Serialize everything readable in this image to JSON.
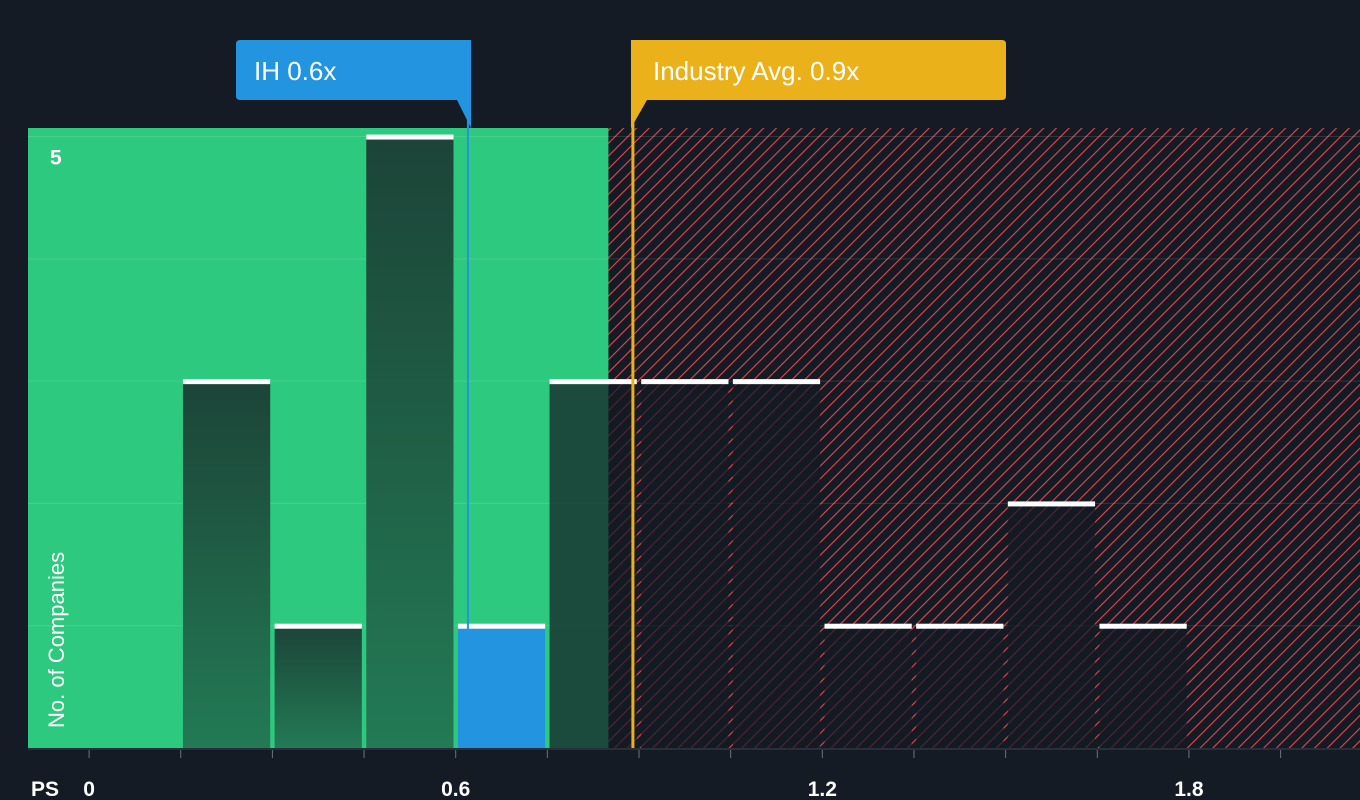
{
  "chart_data": {
    "type": "bar",
    "xlabel": "PS",
    "ylabel": "No. of Companies",
    "x_ticks": [
      0,
      0.6,
      1.2,
      1.8
    ],
    "x_tick_labels": [
      "0",
      "0.6",
      "1.2",
      "1.8"
    ],
    "y_tick_labels": [
      "5"
    ],
    "xlim": [
      -0.1,
      2.08
    ],
    "ylim": [
      0,
      5.07
    ],
    "bin_width": 0.15,
    "bins": [
      {
        "start": 0.15,
        "count": 3
      },
      {
        "start": 0.3,
        "count": 1
      },
      {
        "start": 0.45,
        "count": 5
      },
      {
        "start": 0.6,
        "count": 1,
        "highlight": true
      },
      {
        "start": 0.75,
        "count": 3
      },
      {
        "start": 0.9,
        "count": 3
      },
      {
        "start": 1.05,
        "count": 3
      },
      {
        "start": 1.2,
        "count": 1
      },
      {
        "start": 1.35,
        "count": 1
      },
      {
        "start": 1.5,
        "count": 2
      },
      {
        "start": 1.65,
        "count": 1
      }
    ],
    "good_value_max": 0.85,
    "company": {
      "label": "IH 0.6x",
      "value": 0.62
    },
    "industry_avg": {
      "label": "Industry Avg. 0.9x",
      "value": 0.89
    },
    "colors": {
      "background": "#151b24",
      "good_zone": "#2dc97e",
      "bad_hatch": "#e8474a",
      "bar_dark": "#1e4a3e",
      "bar_highlight": "#2394e0",
      "company_callout": "#2394e0",
      "industry_callout": "#ebb11b",
      "bar_cap": "#ffffff"
    }
  }
}
